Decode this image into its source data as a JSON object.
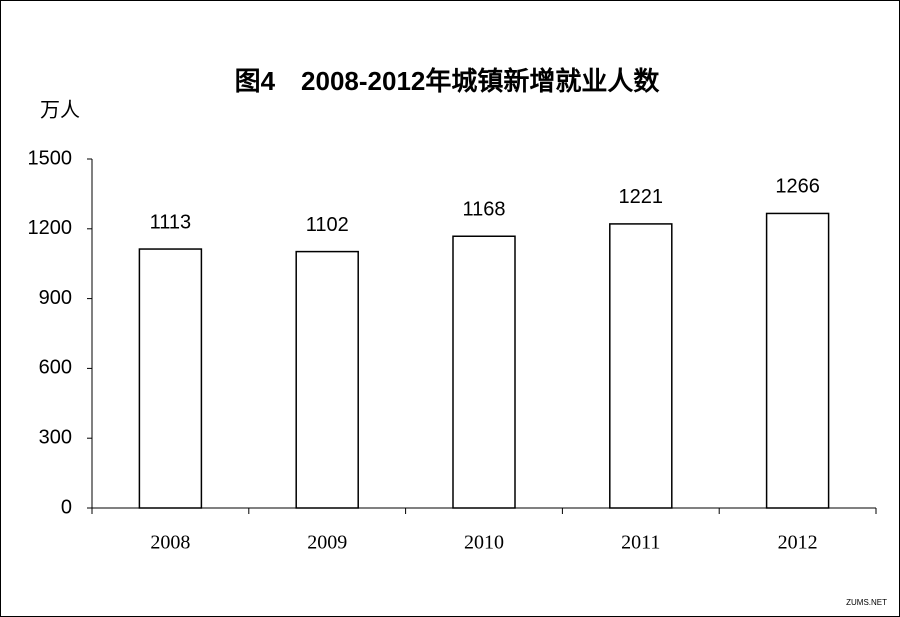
{
  "chart_data": {
    "type": "bar",
    "title": "图4　2008-2012年城镇新增就业人数",
    "y_unit": "万人",
    "categories": [
      "2008",
      "2009",
      "2010",
      "2011",
      "2012"
    ],
    "values": [
      1113,
      1102,
      1168,
      1221,
      1266
    ],
    "color": "#ffffff",
    "ylim": [
      0,
      1500
    ],
    "yticks": [
      0,
      300,
      600,
      900,
      1200,
      1500
    ],
    "grid": false,
    "watermark": "ZUMS.NET"
  }
}
